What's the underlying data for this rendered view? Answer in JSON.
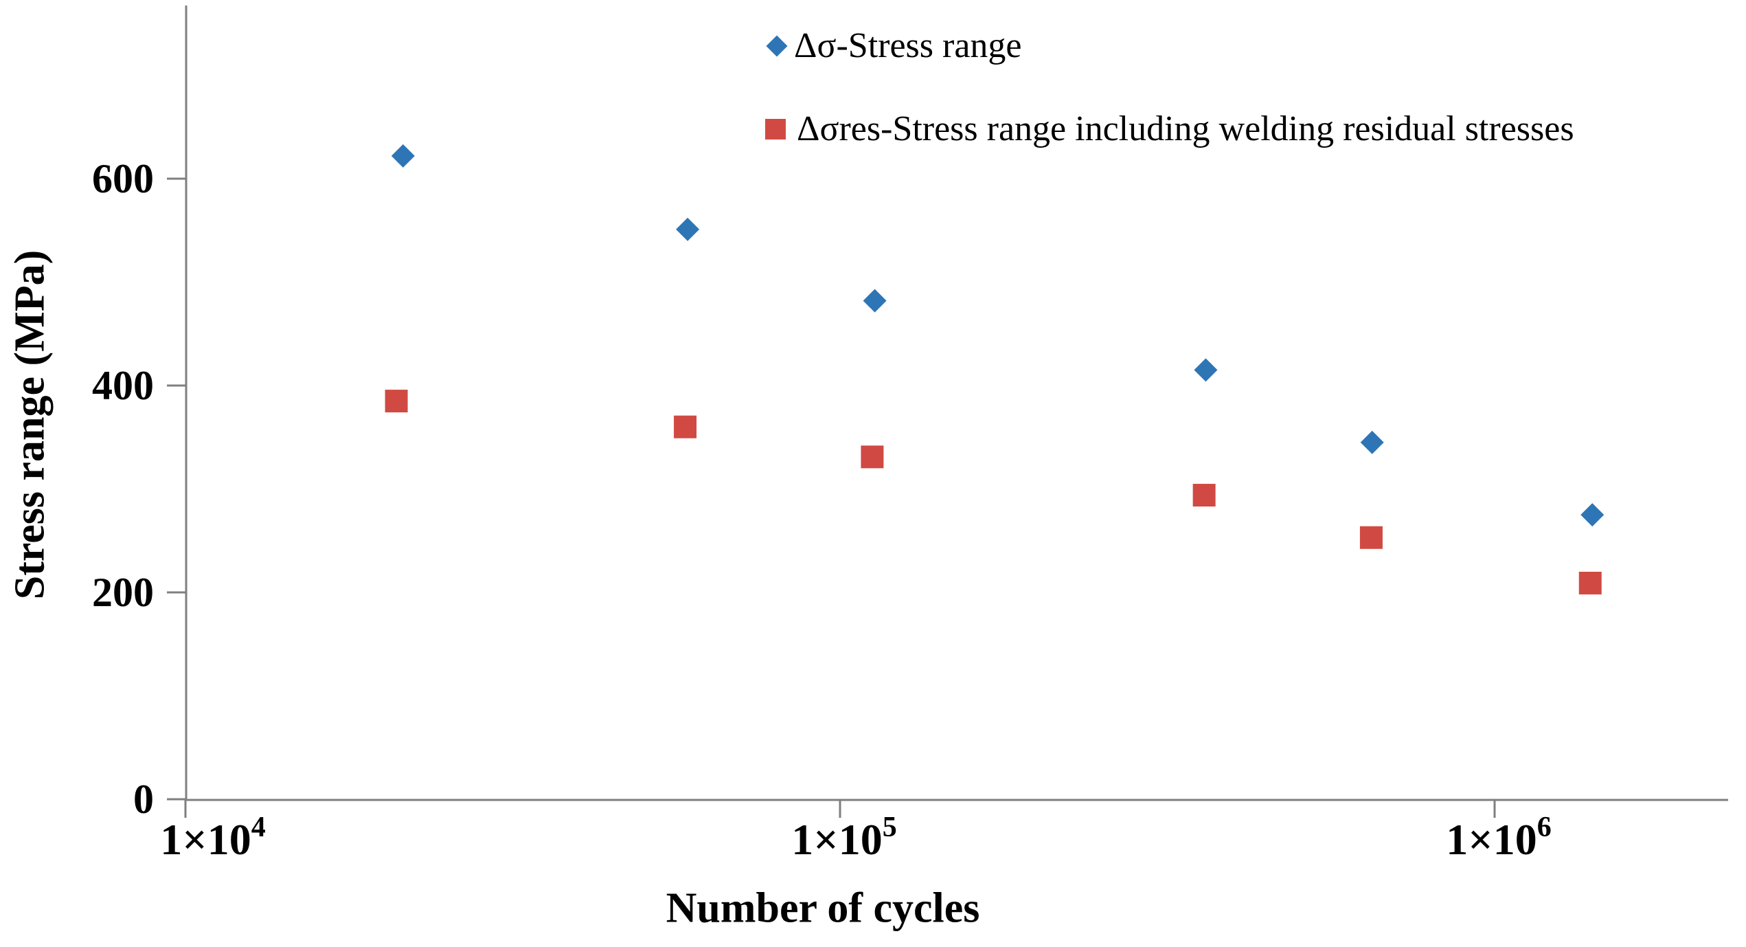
{
  "chart_data": {
    "type": "scatter",
    "title": "",
    "xlabel": "Number of cycles",
    "ylabel": "Stress range (MPa)",
    "x_scale": "log10",
    "xlim": [
      10000,
      2270000
    ],
    "ylim": [
      0,
      766
    ],
    "grid": false,
    "legend_position": "top-center",
    "axis_color": "#7F7F7F",
    "text_color": "#000000",
    "x_ticks": [
      {
        "mantissa": "1×10",
        "exp": "4",
        "value": 10000
      },
      {
        "mantissa": "1×10",
        "exp": "5",
        "value": 100000
      },
      {
        "mantissa": "1×10",
        "exp": "6",
        "value": 1000000
      }
    ],
    "y_ticks": [
      {
        "label": "0",
        "value": 0
      },
      {
        "label": "200",
        "value": 200
      },
      {
        "label": "400",
        "value": 400
      },
      {
        "label": "600",
        "value": 600
      }
    ],
    "series": [
      {
        "name": "Δσ-Stress range",
        "marker": "diamond",
        "color": "#2E75B6",
        "points": [
          [
            21500,
            622
          ],
          [
            58500,
            551
          ],
          [
            113000,
            482
          ],
          [
            362000,
            415
          ],
          [
            650000,
            345
          ],
          [
            1410000,
            275
          ]
        ]
      },
      {
        "name": "Δσres-Stress range including welding residual stresses",
        "marker": "square",
        "color": "#D04A43",
        "points": [
          [
            21000,
            385
          ],
          [
            58000,
            360
          ],
          [
            112000,
            331
          ],
          [
            360000,
            294
          ],
          [
            648000,
            253
          ],
          [
            1400000,
            209
          ]
        ]
      }
    ]
  }
}
